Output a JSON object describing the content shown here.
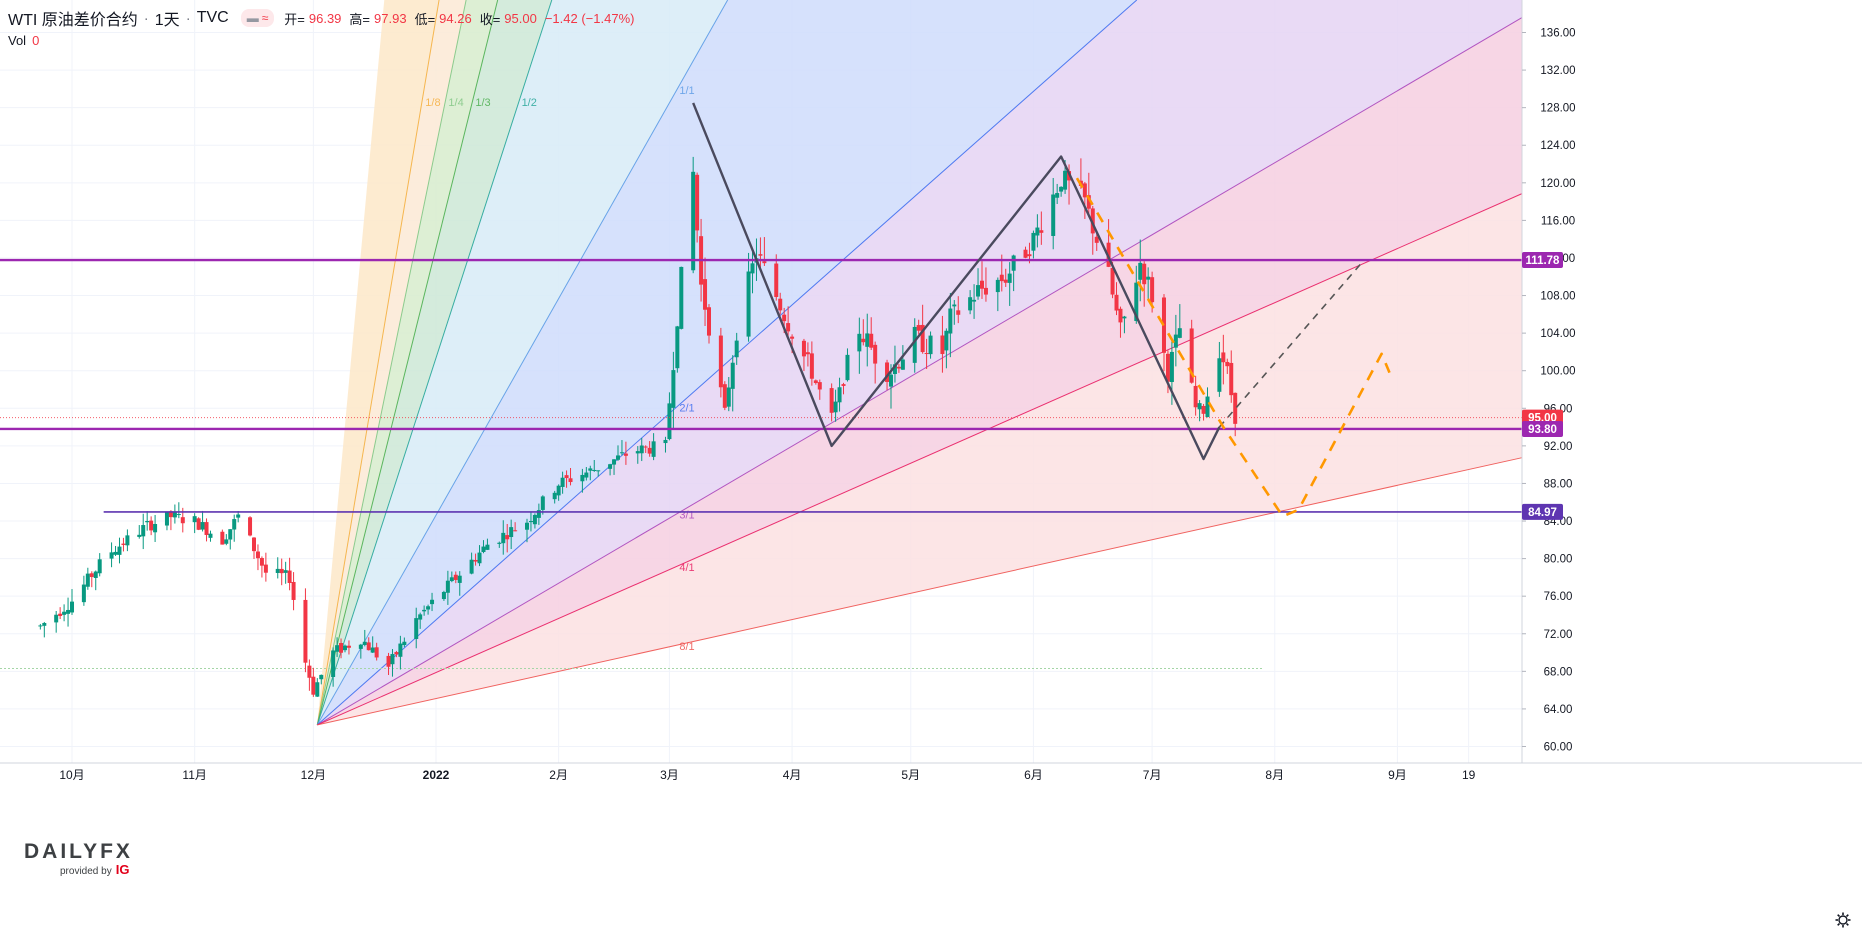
{
  "header": {
    "symbol": "WTI 原油差价合约",
    "interval": "1天",
    "source": "TVC",
    "open_label": "开=",
    "open": "96.39",
    "high_label": "高=",
    "high": "97.93",
    "low_label": "低=",
    "low": "94.26",
    "close_label": "收=",
    "close": "95.00",
    "change": "−1.42 (−1.47%)"
  },
  "volume": {
    "label": "Vol",
    "value": "0"
  },
  "logo": {
    "word_a": "DAILY",
    "word_b": "FX",
    "provided_by": "provided by",
    "ig": "IG"
  },
  "colors": {
    "up": "#089981",
    "down": "#f23645",
    "level_line": "#9c27b0",
    "level_line_dark": "#7b1fa2",
    "trend_line": "#4a4a5e",
    "projection": "#ff9800"
  },
  "chart_data": {
    "type": "candlestick",
    "y_axis": {
      "range": [
        58,
        138
      ],
      "ticks": [
        60,
        64,
        68,
        72,
        76,
        80,
        84,
        88,
        92,
        96,
        100,
        104,
        108,
        112,
        116,
        120,
        124,
        128,
        132,
        136
      ],
      "position": "right"
    },
    "x_axis": {
      "ticks": [
        {
          "date": "2021-10-01",
          "label": "10月"
        },
        {
          "date": "2021-11-01",
          "label": "11月"
        },
        {
          "date": "2021-12-01",
          "label": "12月"
        },
        {
          "date": "2022-01-01",
          "label": "2022"
        },
        {
          "date": "2022-02-01",
          "label": "2月"
        },
        {
          "date": "2022-03-01",
          "label": "3月"
        },
        {
          "date": "2022-04-01",
          "label": "4月"
        },
        {
          "date": "2022-05-01",
          "label": "5月"
        },
        {
          "date": "2022-06-01",
          "label": "6月"
        },
        {
          "date": "2022-07-01",
          "label": "7月"
        },
        {
          "date": "2022-08-01",
          "label": "8月"
        },
        {
          "date": "2022-09-01",
          "label": "9月"
        },
        {
          "date": "2022-09-19",
          "label": "19"
        }
      ],
      "range": [
        "2021-09-23",
        "2022-09-26"
      ]
    },
    "path_points": [
      [
        "2021-09-23",
        72.8
      ],
      [
        "2021-10-01",
        75.5
      ],
      [
        "2021-10-10",
        80.5
      ],
      [
        "2021-10-20",
        83.5
      ],
      [
        "2021-10-26",
        84.5
      ],
      [
        "2021-11-01",
        84.0
      ],
      [
        "2021-11-08",
        82.0
      ],
      [
        "2021-11-12",
        84.5
      ],
      [
        "2021-11-19",
        78.5
      ],
      [
        "2021-11-25",
        78.0
      ],
      [
        "2021-11-29",
        69.0
      ],
      [
        "2021-12-01",
        66.0
      ],
      [
        "2021-12-06",
        70.0
      ],
      [
        "2021-12-13",
        71.5
      ],
      [
        "2021-12-20",
        68.5
      ],
      [
        "2021-12-27",
        73.5
      ],
      [
        "2022-01-05",
        77.5
      ],
      [
        "2022-01-14",
        81.5
      ],
      [
        "2022-01-24",
        84.0
      ],
      [
        "2022-02-01",
        88.0
      ],
      [
        "2022-02-10",
        89.5
      ],
      [
        "2022-02-20",
        91.5
      ],
      [
        "2022-02-28",
        92.0
      ],
      [
        "2022-03-03",
        106.0
      ],
      [
        "2022-03-07",
        121.0
      ],
      [
        "2022-03-09",
        109.0
      ],
      [
        "2022-03-11",
        105.0
      ],
      [
        "2022-03-15",
        95.5
      ],
      [
        "2022-03-18",
        104.5
      ],
      [
        "2022-03-23",
        112.5
      ],
      [
        "2022-03-28",
        108.0
      ],
      [
        "2022-04-04",
        101.5
      ],
      [
        "2022-04-11",
        95.0
      ],
      [
        "2022-04-18",
        104.5
      ],
      [
        "2022-04-25",
        99.5
      ],
      [
        "2022-05-02",
        103.5
      ],
      [
        "2022-05-09",
        102.0
      ],
      [
        "2022-05-11",
        105.5
      ],
      [
        "2022-05-18",
        108.5
      ],
      [
        "2022-05-25",
        110.0
      ],
      [
        "2022-06-01",
        114.0
      ],
      [
        "2022-06-08",
        120.5
      ],
      [
        "2022-06-14",
        118.0
      ],
      [
        "2022-06-20",
        110.0
      ],
      [
        "2022-06-23",
        104.0
      ],
      [
        "2022-06-28",
        111.5
      ],
      [
        "2022-07-01",
        108.0
      ],
      [
        "2022-07-05",
        99.5
      ],
      [
        "2022-07-08",
        104.5
      ],
      [
        "2022-07-12",
        96.0
      ],
      [
        "2022-07-14",
        95.8
      ],
      [
        "2022-07-18",
        102.5
      ],
      [
        "2022-07-20",
        100.0
      ],
      [
        "2022-07-22",
        95.0
      ]
    ],
    "horizontal_levels": [
      {
        "label": "111.78",
        "value": 111.78
      },
      {
        "label": "93.80",
        "value": 93.8
      },
      {
        "label": "84.97",
        "value": 84.97,
        "start": "2021-10-09"
      }
    ],
    "last_price": {
      "label": "95.00",
      "value": 95.0
    },
    "gann_fan": {
      "origin": {
        "date": "2021-12-02",
        "value": 62.3
      },
      "lines": [
        {
          "label": "1/8",
          "through": {
            "date": "2021-12-29",
            "value": 130.0
          },
          "color": "#f5b041"
        },
        {
          "label": "1/4",
          "through": {
            "date": "2022-01-04",
            "value": 130.0
          },
          "color": "#82c785"
        },
        {
          "label": "1/3",
          "through": {
            "date": "2022-01-11",
            "value": 130.0
          },
          "color": "#4caf50"
        },
        {
          "label": "1/2",
          "through": {
            "date": "2022-01-23",
            "value": 130.0
          },
          "color": "#26a69a"
        },
        {
          "label": "1/1",
          "through": {
            "date": "2022-03-03",
            "value": 130.0
          },
          "color": "#5c9ce6"
        },
        {
          "label": "2/1",
          "through": {
            "date": "2022-03-03",
            "value": 96.2
          },
          "color": "#3f6ff0"
        },
        {
          "label": "3/1",
          "through": {
            "date": "2022-03-03",
            "value": 84.8
          },
          "color": "#ab47bc"
        },
        {
          "label": "4/1",
          "through": {
            "date": "2022-03-03",
            "value": 79.2
          },
          "color": "#e91e63"
        },
        {
          "label": "8/1",
          "through": {
            "date": "2022-03-03",
            "value": 70.8
          },
          "color": "#ef5350"
        }
      ]
    },
    "trend_path": [
      {
        "date": "2022-03-07",
        "value": 128.5
      },
      {
        "date": "2022-04-11",
        "value": 92.0
      },
      {
        "date": "2022-06-08",
        "value": 122.8
      },
      {
        "date": "2022-07-14",
        "value": 90.6
      },
      {
        "date": "2022-07-18",
        "value": 94.0
      }
    ],
    "dashed_projection": [
      {
        "date": "2022-07-18",
        "value": 94.0
      },
      {
        "date": "2022-08-23",
        "value": 111.5
      }
    ],
    "orange_projection": [
      {
        "date": "2022-06-12",
        "value": 120.5
      },
      {
        "date": "2022-07-19",
        "value": 94.0
      },
      {
        "date": "2022-08-03",
        "value": 84.5
      },
      {
        "date": "2022-08-07",
        "value": 85.2
      },
      {
        "date": "2022-08-28",
        "value": 101.8
      },
      {
        "date": "2022-08-30",
        "value": 99.8
      }
    ],
    "low_dotted_level": {
      "value": 68.3
    }
  }
}
